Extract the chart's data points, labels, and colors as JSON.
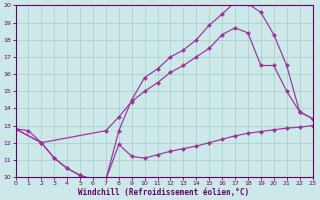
{
  "xlabel": "Windchill (Refroidissement éolien,°C)",
  "bg_color": "#cce8e8",
  "line_color": "#993399",
  "grid_color": "#aacccc",
  "xlim": [
    0,
    23
  ],
  "ylim": [
    10,
    20
  ],
  "yticks": [
    10,
    11,
    12,
    13,
    14,
    15,
    16,
    17,
    18,
    19,
    20
  ],
  "xticks": [
    0,
    1,
    2,
    3,
    4,
    5,
    6,
    7,
    8,
    9,
    10,
    11,
    12,
    13,
    14,
    15,
    16,
    17,
    18,
    19,
    20,
    21,
    22,
    23
  ],
  "curve1_x": [
    0,
    1,
    2,
    3,
    4,
    5,
    6,
    7,
    8,
    9,
    10,
    11,
    12,
    13,
    14,
    15,
    16,
    17,
    18,
    19,
    20,
    21,
    22,
    23
  ],
  "curve1_y": [
    12.8,
    12.7,
    12.0,
    11.1,
    10.5,
    10.1,
    9.85,
    9.85,
    11.9,
    11.2,
    11.1,
    11.3,
    11.5,
    11.65,
    11.8,
    12.0,
    12.2,
    12.4,
    12.55,
    12.65,
    12.75,
    12.85,
    12.9,
    13.0
  ],
  "curve2_x": [
    0,
    2,
    3,
    4,
    5,
    6,
    7,
    8,
    9,
    10,
    11,
    12,
    13,
    14,
    15,
    16,
    17,
    18,
    19,
    20,
    21,
    22,
    23
  ],
  "curve2_y": [
    12.8,
    12.0,
    11.1,
    10.5,
    10.1,
    9.85,
    9.85,
    12.7,
    14.5,
    15.8,
    16.3,
    17.0,
    17.4,
    18.0,
    18.85,
    19.5,
    20.2,
    20.1,
    19.6,
    18.3,
    16.5,
    13.8,
    13.4
  ],
  "curve3_x": [
    0,
    2,
    7,
    8,
    9,
    10,
    11,
    12,
    13,
    14,
    15,
    16,
    17,
    18,
    19,
    20,
    21,
    22,
    23
  ],
  "curve3_y": [
    12.8,
    12.0,
    12.7,
    13.5,
    14.4,
    15.0,
    15.5,
    16.1,
    16.5,
    17.0,
    17.5,
    18.3,
    18.7,
    18.4,
    16.5,
    16.5,
    15.0,
    13.8,
    13.4
  ],
  "tick_color": "#660066",
  "label_color": "#660066",
  "spine_color": "#660066"
}
